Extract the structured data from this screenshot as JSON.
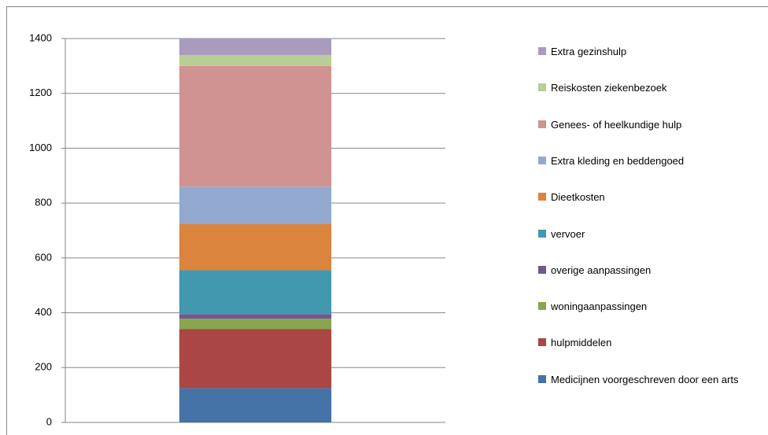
{
  "chart_data": {
    "type": "bar",
    "stacked": true,
    "categories": [
      null
    ],
    "series": [
      {
        "name": "Medicijnen voorgeschreven door een arts",
        "color": "#4572a7",
        "values": [
          125
        ]
      },
      {
        "name": "hulpmiddelen",
        "color": "#aa4643",
        "values": [
          215
        ]
      },
      {
        "name": "woningaanpassingen",
        "color": "#89a54e",
        "values": [
          38
        ]
      },
      {
        "name": "overige aanpassingen",
        "color": "#71588f",
        "values": [
          17
        ]
      },
      {
        "name": "vervoer",
        "color": "#4198af",
        "values": [
          160
        ]
      },
      {
        "name": "Dieetkosten",
        "color": "#db843d",
        "values": [
          168
        ]
      },
      {
        "name": "Extra kleding en beddengoed",
        "color": "#93a9cf",
        "values": [
          137
        ]
      },
      {
        "name": "Genees- of heelkundige hulp",
        "color": "#d19392",
        "values": [
          440
        ]
      },
      {
        "name": "Reiskosten ziekenbezoek",
        "color": "#b9cd96",
        "values": [
          40
        ]
      },
      {
        "name": "Extra gezinshulp",
        "color": "#a99bbd",
        "values": [
          60
        ]
      }
    ],
    "ylim": [
      0,
      1400
    ],
    "yticks": [
      0,
      200,
      400,
      600,
      800,
      1000,
      1200,
      1400
    ],
    "grid": true,
    "legend": "right"
  }
}
